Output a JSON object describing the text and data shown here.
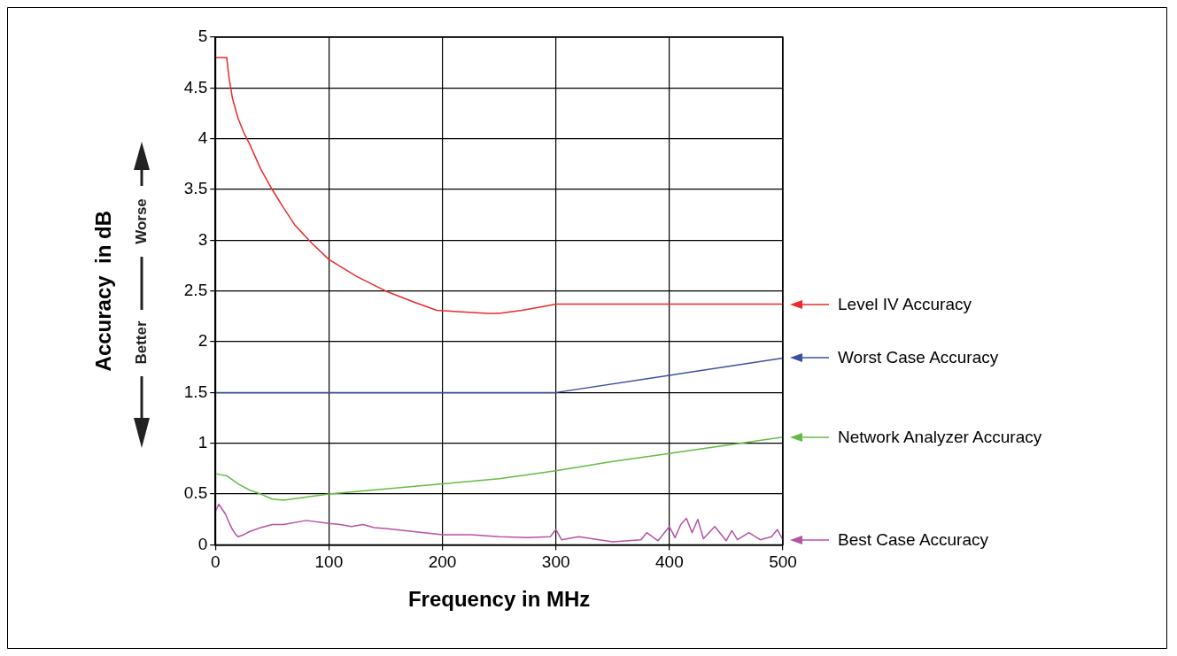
{
  "chart_data": {
    "type": "line",
    "xlabel": "Frequency in MHz",
    "ylabel": "Accuracy  in dB",
    "xlim": [
      0,
      500
    ],
    "xticks": [
      0,
      100,
      200,
      300,
      400,
      500
    ],
    "ylim": [
      0,
      5
    ],
    "yticks": [
      0,
      0.5,
      1,
      1.5,
      2,
      2.5,
      3,
      3.5,
      4,
      4.5,
      5
    ],
    "grid": true,
    "legend": "right",
    "marker": "none",
    "line_style": "solid",
    "annotations": [
      "Worse",
      "Better"
    ],
    "series": [
      {
        "name": "Level IV Accuracy",
        "color": "#ee2a2a",
        "x": [
          0,
          10,
          12,
          15,
          20,
          25,
          30,
          40,
          50,
          60,
          70,
          85,
          100,
          125,
          150,
          175,
          195,
          210,
          240,
          250,
          270,
          290,
          300,
          350,
          400,
          450,
          500
        ],
        "values": [
          4.8,
          4.8,
          4.6,
          4.4,
          4.2,
          4.06,
          3.95,
          3.7,
          3.5,
          3.32,
          3.15,
          2.97,
          2.81,
          2.64,
          2.5,
          2.39,
          2.31,
          2.3,
          2.28,
          2.28,
          2.31,
          2.35,
          2.37,
          2.37,
          2.37,
          2.37,
          2.37
        ]
      },
      {
        "name": "Worst Case Accuracy",
        "color": "#3a50a0",
        "x": [
          0,
          100,
          200,
          300,
          400,
          500
        ],
        "values": [
          1.5,
          1.5,
          1.5,
          1.5,
          1.67,
          1.84
        ]
      },
      {
        "name": "Network Analyzer Accuracy",
        "color": "#66bb44",
        "x": [
          0,
          10,
          20,
          30,
          40,
          50,
          60,
          80,
          100,
          150,
          200,
          250,
          300,
          350,
          400,
          450,
          500
        ],
        "values": [
          0.7,
          0.68,
          0.6,
          0.54,
          0.5,
          0.45,
          0.44,
          0.47,
          0.5,
          0.55,
          0.6,
          0.65,
          0.73,
          0.82,
          0.9,
          0.98,
          1.06
        ]
      },
      {
        "name": "Best Case Accuracy",
        "color": "#b552a4",
        "x": [
          0,
          3,
          6,
          9,
          12,
          15,
          18,
          20,
          25,
          30,
          40,
          50,
          60,
          80,
          100,
          110,
          120,
          130,
          140,
          150,
          175,
          200,
          225,
          250,
          275,
          295,
          300,
          305,
          320,
          350,
          375,
          380,
          390,
          400,
          405,
          410,
          415,
          420,
          425,
          430,
          440,
          450,
          455,
          460,
          470,
          480,
          490,
          495,
          500
        ],
        "values": [
          0.33,
          0.4,
          0.35,
          0.3,
          0.22,
          0.15,
          0.1,
          0.08,
          0.1,
          0.13,
          0.17,
          0.2,
          0.2,
          0.24,
          0.21,
          0.2,
          0.18,
          0.2,
          0.17,
          0.16,
          0.13,
          0.1,
          0.1,
          0.08,
          0.07,
          0.08,
          0.15,
          0.05,
          0.08,
          0.03,
          0.05,
          0.12,
          0.04,
          0.18,
          0.07,
          0.2,
          0.26,
          0.12,
          0.25,
          0.06,
          0.18,
          0.04,
          0.14,
          0.05,
          0.12,
          0.05,
          0.08,
          0.15,
          0.05
        ]
      }
    ]
  }
}
